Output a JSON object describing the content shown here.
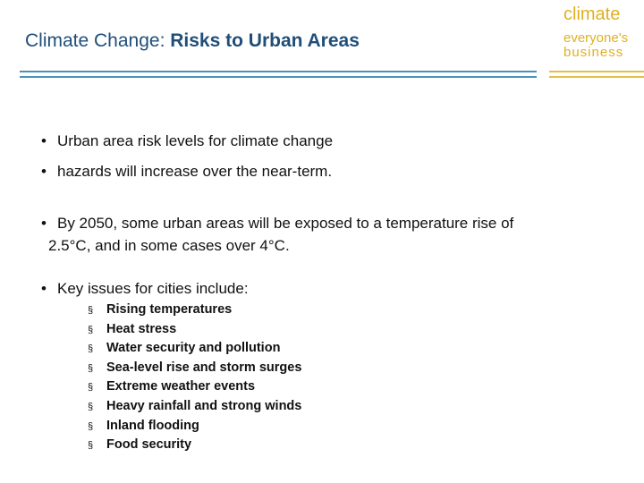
{
  "header": {
    "title_prefix": "Climate Change: ",
    "title_bold": "Risks to Urban Areas"
  },
  "brand": {
    "line1": "climate",
    "line2": "everyone's",
    "line3": "business",
    "color": "#e0b020"
  },
  "bullets": {
    "a": "Urban area risk levels for climate change",
    "b": "hazards will increase over the near-term.",
    "c_line1": "By 2050, some urban areas will be  exposed to a temperature rise of",
    "c_line2": "2.5°C,  and in some cases over 4°C.",
    "d": "Key issues for cities include:"
  },
  "issues": [
    "Rising temperatures",
    "Heat stress",
    "Water security and pollution",
    "Sea-level rise and storm surges",
    "Extreme weather events",
    "Heavy rainfall and strong winds",
    "Inland flooding",
    "Food security"
  ],
  "colors": {
    "title": "#1f4e79",
    "rule": "#4a90b8"
  }
}
